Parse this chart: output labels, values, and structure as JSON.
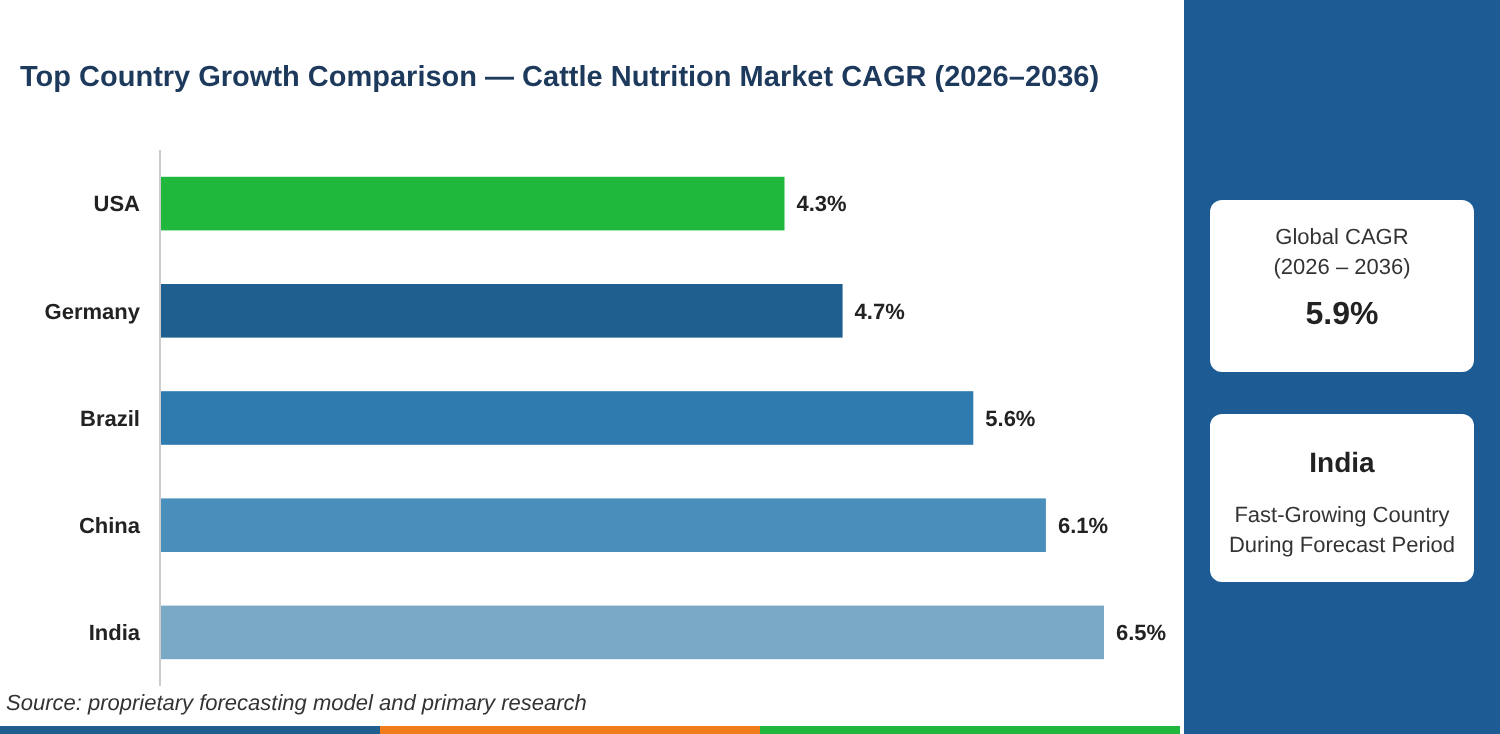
{
  "chart_data": {
    "type": "bar",
    "orientation": "horizontal",
    "title": "Top Country Growth Comparison — Cattle Nutrition Market CAGR (2026–2036)",
    "categories": [
      "USA",
      "Germany",
      "Brazil",
      "China",
      "India"
    ],
    "values": [
      4.3,
      4.7,
      5.6,
      6.1,
      6.5
    ],
    "value_labels": [
      "4.3%",
      "4.7%",
      "5.6%",
      "6.1%",
      "6.5%"
    ],
    "colors": [
      "#1fb83c",
      "#1e5f8f",
      "#2f7bb0",
      "#4a8fbb",
      "#7aa9c5"
    ],
    "annotations": [
      "Source: proprietary forecasting model and primary research",
      "Global CAGR",
      "(2026 – 2036)",
      "5.9%",
      "India",
      "Fast-Growing Country",
      "During Forecast Period"
    ]
  }
}
